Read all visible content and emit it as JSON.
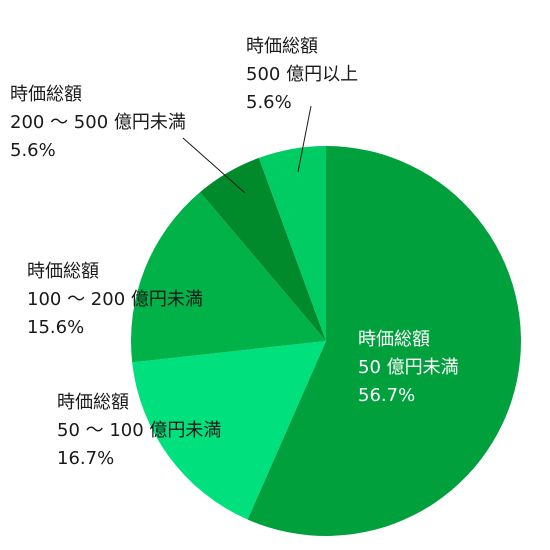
{
  "chart_data": {
    "type": "pie",
    "start": "12 o'clock",
    "direction": "clockwise",
    "slices": [
      {
        "lines": [
          "時価総額",
          "50 億円未満",
          "56.7%"
        ],
        "value": 56.7,
        "color": "#00a03c",
        "label_color": "#ffffff"
      },
      {
        "lines": [
          "時価総額",
          "50 ～ 100 億円未満",
          "16.7%"
        ],
        "value": 16.7,
        "color": "#00e07c",
        "label_color": "#1a1a1a"
      },
      {
        "lines": [
          "時価総額",
          "100 ～ 200 億円未満",
          "15.6%"
        ],
        "value": 15.6,
        "color": "#00b248",
        "label_color": "#1a1a1a"
      },
      {
        "lines": [
          "時価総額",
          "200 ～ 500 億円未満",
          "5.6%"
        ],
        "value": 5.6,
        "color": "#008a2c",
        "label_color": "#1a1a1a"
      },
      {
        "lines": [
          "時価総額",
          "500 億円以上",
          "5.6%"
        ],
        "value": 5.6,
        "color": "#00cc64",
        "label_color": "#1a1a1a"
      }
    ]
  }
}
